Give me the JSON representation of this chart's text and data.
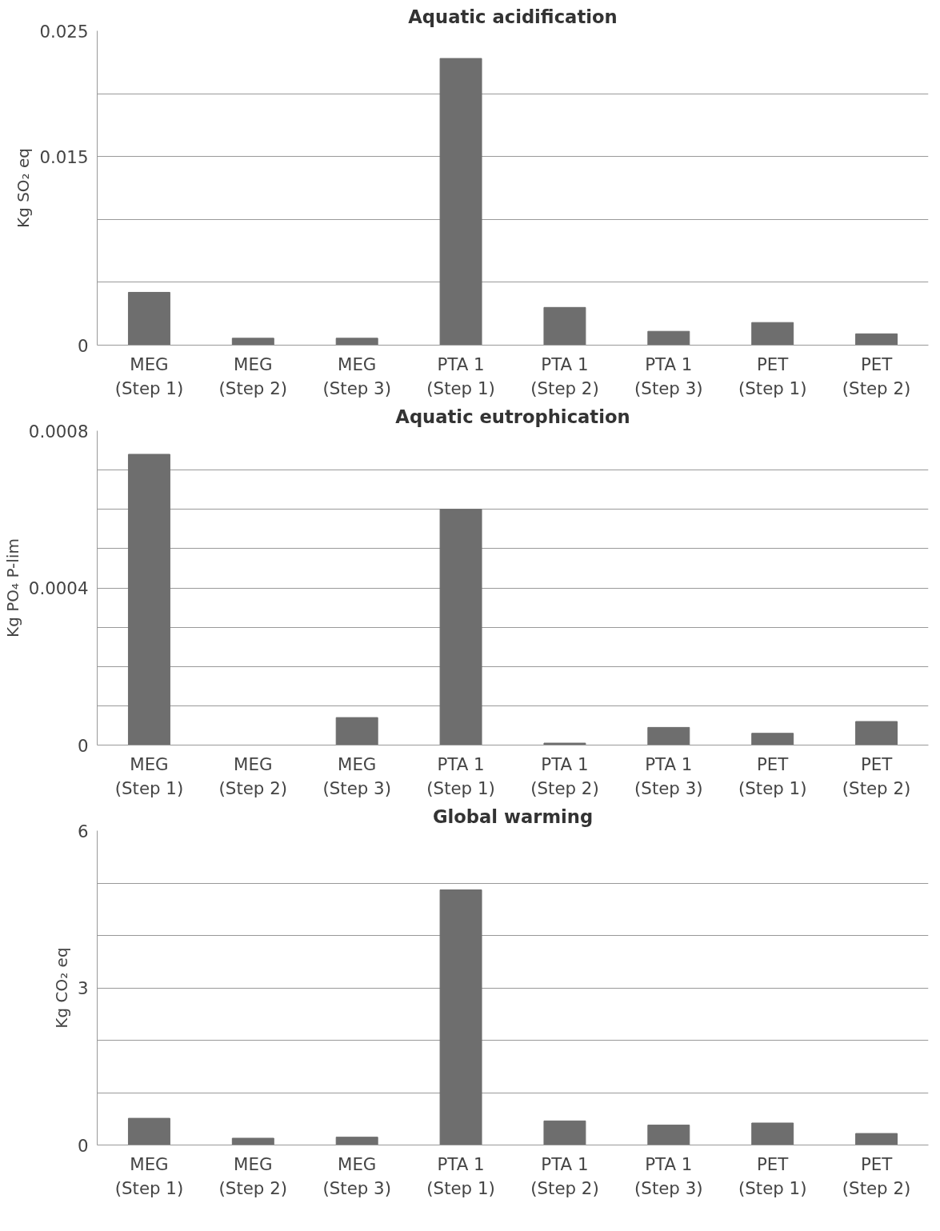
{
  "chart_data": [
    {
      "type": "bar",
      "title": "Aquatic acidification",
      "ylabel": "Kg SO₂ eq",
      "categories": [
        "MEG\n(Step 1)",
        "MEG\n(Step 2)",
        "MEG\n(Step 3)",
        "PTA 1\n(Step 1)",
        "PTA 1\n(Step 2)",
        "PTA 1\n(Step 3)",
        "PET\n(Step 1)",
        "PET\n(Step 2)"
      ],
      "series": [
        {
          "color": "#6e6e6e",
          "values": [
            0.0042,
            0.00055,
            0.00055,
            0.0228,
            0.003,
            0.0011,
            0.0018,
            0.0009
          ]
        }
      ],
      "ylim": [
        0,
        0.025
      ],
      "yticks": [
        0,
        {
          "value": 0.005,
          "label": null
        },
        {
          "value": 0.01,
          "label": null
        },
        0.015,
        {
          "value": 0.02,
          "label": null
        },
        0.025
      ],
      "grid": "y"
    },
    {
      "type": "bar",
      "title": "Aquatic eutrophication",
      "ylabel": "Kg PO₄ P-lim",
      "categories": [
        "MEG\n(Step 1)",
        "MEG\n(Step 2)",
        "MEG\n(Step 3)",
        "PTA 1\n(Step 1)",
        "PTA 1\n(Step 2)",
        "PTA 1\n(Step 3)",
        "PET\n(Step 1)",
        "PET\n(Step 2)"
      ],
      "series": [
        {
          "color": "#6e6e6e",
          "values": [
            0.00074,
            0,
            7e-05,
            0.0006,
            5e-06,
            4.5e-05,
            3e-05,
            6e-05
          ]
        }
      ],
      "ylim": [
        0,
        0.0008
      ],
      "yticks": [
        0,
        {
          "value": 0.0001,
          "label": null
        },
        {
          "value": 0.0002,
          "label": null
        },
        {
          "value": 0.0003,
          "label": null
        },
        0.0004,
        {
          "value": 0.0005,
          "label": null
        },
        {
          "value": 0.0006,
          "label": null
        },
        {
          "value": 0.0007,
          "label": null
        },
        0.0008
      ],
      "grid": "y"
    },
    {
      "type": "bar",
      "title": "Global warming",
      "ylabel": "Kg CO₂ eq",
      "categories": [
        "MEG\n(Step 1)",
        "MEG\n(Step 2)",
        "MEG\n(Step 3)",
        "PTA 1\n(Step 1)",
        "PTA 1\n(Step 2)",
        "PTA 1\n(Step 3)",
        "PET\n(Step 1)",
        "PET\n(Step 2)"
      ],
      "series": [
        {
          "color": "#6e6e6e",
          "values": [
            0.51,
            0.13,
            0.15,
            4.87,
            0.46,
            0.38,
            0.42,
            0.22
          ]
        }
      ],
      "ylim": [
        0,
        6
      ],
      "yticks": [
        0,
        {
          "value": 1,
          "label": null
        },
        {
          "value": 2,
          "label": null
        },
        3,
        {
          "value": 4,
          "label": null
        },
        {
          "value": 5,
          "label": null
        },
        6
      ],
      "grid": "y"
    }
  ]
}
